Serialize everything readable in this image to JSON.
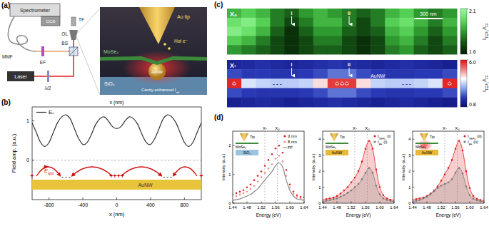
{
  "diagram": {
    "panel": "(a)",
    "setup_labels": [
      "Spectrometer",
      "CCD",
      "MMF",
      "EF",
      "BS",
      "λ/2",
      "Laser",
      "TF",
      "OL"
    ],
    "inset_labels": [
      "Au tip",
      "Hot e⁻",
      "MoSe₂",
      "AuNW",
      "SiO₂",
      [
        {
          "t": "Cavity-enhanced I"
        },
        {
          "t": "ref",
          "sub": true
        }
      ]
    ]
  },
  "chart_data": [
    {
      "type": "line",
      "panel": "(b)",
      "x_label_top": "x (nm)",
      "x_label": "x (nm)",
      "y_label": "Field amp. (a.u.)",
      "x": [
        -1000,
        -950,
        -900,
        -850,
        -800,
        -750,
        -700,
        -650,
        -600,
        -550,
        -500,
        -450,
        -400,
        -350,
        -300,
        -250,
        -200,
        -150,
        -100,
        -50,
        0,
        50,
        100,
        150,
        200,
        250,
        300,
        350,
        400,
        450,
        500,
        550,
        600,
        650,
        700,
        750,
        800,
        850,
        900,
        950,
        1000
      ],
      "series": [
        {
          "name": "Eₓ",
          "color": "#333333",
          "values": [
            0.95,
            0.7,
            0.45,
            0.35,
            0.45,
            0.7,
            0.95,
            1.1,
            1.15,
            1.05,
            0.8,
            0.55,
            0.4,
            0.45,
            0.65,
            0.9,
            1.05,
            1.1,
            1.0,
            0.85,
            0.8,
            0.85,
            1.0,
            1.1,
            1.05,
            0.9,
            0.65,
            0.45,
            0.4,
            0.55,
            0.8,
            1.05,
            1.15,
            1.1,
            0.95,
            0.7,
            0.45,
            0.35,
            0.45,
            0.7,
            0.95
          ]
        }
      ],
      "xlim": [
        -1000,
        1000
      ],
      "ylim": [
        -1.0,
        1.35
      ],
      "xticks": [
        -800,
        -400,
        0,
        400,
        800
      ],
      "yticks": [
        0,
        1
      ],
      "grid": false,
      "legend": "upper left",
      "wire_label": "AuNW",
      "field_label": [
        {
          "t": "E"
        },
        {
          "t": "spp",
          "sub": true
        }
      ],
      "annotations": [
        {
          "text": "+",
          "x": -1000
        },
        {
          "text": "- - -",
          "x": -600
        },
        {
          "text": "++++",
          "x": 0
        },
        {
          "text": "- - -",
          "x": 600
        },
        {
          "text": "+",
          "x": 1000
        }
      ]
    },
    {
      "type": "heatmap",
      "panel": "(c)",
      "title": "X₀",
      "color": "greens",
      "cells": [
        [
          1.9,
          1.95,
          1.9,
          1.8,
          1.75,
          1.85,
          1.9,
          1.85,
          1.8,
          1.75,
          1.8,
          1.9,
          1.95,
          1.85,
          1.8,
          1.85
        ],
        [
          2.0,
          2.05,
          1.95,
          1.8,
          1.7,
          1.8,
          1.9,
          1.9,
          1.8,
          1.7,
          1.8,
          1.95,
          2.0,
          1.9,
          1.8,
          1.9
        ],
        [
          2.05,
          2.0,
          1.9,
          1.75,
          1.65,
          1.75,
          1.85,
          1.85,
          1.75,
          1.7,
          1.75,
          1.9,
          1.95,
          1.85,
          1.75,
          1.85
        ],
        [
          1.95,
          1.9,
          1.8,
          1.7,
          1.65,
          1.7,
          1.8,
          1.8,
          1.7,
          1.65,
          1.7,
          1.85,
          1.9,
          1.8,
          1.7,
          1.8
        ],
        [
          1.85,
          1.8,
          1.75,
          1.7,
          1.65,
          1.7,
          1.75,
          1.75,
          1.7,
          1.65,
          1.7,
          1.8,
          1.85,
          1.75,
          1.7,
          1.75
        ]
      ],
      "zlim": [
        1.6,
        2.1
      ],
      "zticks": [
        1.6,
        2.1
      ],
      "colorbar_label": [
        {
          "t": "I"
        },
        {
          "t": "TEPL",
          "sub": true
        },
        {
          "t": "/I"
        },
        {
          "t": "FF",
          "sub": true
        }
      ],
      "scale_bar": "300 nm",
      "annotations": [
        {
          "text": "i",
          "col": 4
        },
        {
          "text": "ii",
          "col": 8
        }
      ]
    },
    {
      "type": "heatmap",
      "title": "X-",
      "color": "bwr",
      "cells": [
        [
          1.4,
          1.5,
          1.6,
          1.5,
          1.4,
          1.5,
          1.6,
          1.7,
          1.6,
          1.5,
          1.4,
          1.5,
          1.6,
          1.5,
          1.4,
          1.3
        ],
        [
          2.0,
          1.8,
          1.8,
          1.7,
          1.7,
          1.8,
          2.0,
          2.4,
          2.4,
          2.0,
          1.8,
          1.7,
          1.7,
          1.8,
          1.8,
          2.0
        ],
        [
          5.8,
          3.6,
          3.4,
          3.3,
          3.3,
          3.4,
          4.2,
          5.6,
          5.6,
          4.2,
          3.4,
          3.3,
          3.3,
          3.4,
          3.6,
          5.8
        ],
        [
          2.0,
          1.8,
          1.7,
          1.7,
          1.7,
          1.8,
          2.0,
          2.4,
          2.4,
          2.0,
          1.8,
          1.7,
          1.7,
          1.8,
          1.8,
          2.0
        ],
        [
          1.3,
          1.4,
          1.5,
          1.4,
          1.3,
          1.4,
          1.5,
          1.6,
          1.5,
          1.4,
          1.3,
          1.4,
          1.5,
          1.4,
          1.3,
          1.2
        ]
      ],
      "zlim": [
        0.8,
        6.0
      ],
      "zticks": [
        0.8,
        {
          "value": 6,
          "label": "6.0"
        }
      ],
      "colorbar_label": [
        {
          "t": "I"
        },
        {
          "t": "TEPL",
          "sub": true
        },
        {
          "t": "/I"
        },
        {
          "t": "FF",
          "sub": true
        }
      ],
      "annotations": [
        {
          "text": "i",
          "col": 4
        },
        {
          "text": "ii",
          "col": 8
        }
      ],
      "charges": [
        {
          "text": "+",
          "col": 0
        },
        {
          "text": "- - -",
          "col": 3
        },
        {
          "text": "+ + +",
          "col": 7.5
        },
        {
          "text": "- - -",
          "col": 12
        },
        {
          "text": "+",
          "col": 15
        }
      ],
      "wire_label": "AuNW"
    },
    {
      "type": "line",
      "panel": "(d)",
      "x_label": "Energy (eV)",
      "y_label": "Intensity (a.u.)",
      "x": [
        1.44,
        1.45,
        1.46,
        1.47,
        1.48,
        1.49,
        1.5,
        1.51,
        1.52,
        1.53,
        1.54,
        1.55,
        1.56,
        1.57,
        1.58,
        1.59,
        1.6,
        1.61,
        1.62,
        1.63,
        1.64
      ],
      "series": [
        {
          "name": "3 nm",
          "type": "scatter",
          "marker": "circle",
          "color": "#e02020",
          "values": [
            0.3,
            0.35,
            0.4,
            0.45,
            0.55,
            0.65,
            0.8,
            0.95,
            1.1,
            1.3,
            1.5,
            1.7,
            1.9,
            2.0,
            1.75,
            1.15,
            0.65,
            0.4,
            0.28,
            0.22,
            0.2
          ]
        },
        {
          "name": "8 nm",
          "type": "scatter",
          "marker": "circle",
          "color": "#f09090",
          "values": [
            0.2,
            0.25,
            0.3,
            0.35,
            0.4,
            0.5,
            0.6,
            0.75,
            0.9,
            1.05,
            1.2,
            1.35,
            1.55,
            1.65,
            1.45,
            0.95,
            0.55,
            0.32,
            0.22,
            0.17,
            0.15
          ]
        },
        {
          "name": "FF",
          "type": "line",
          "color": "#808080",
          "values": [
            0.1,
            0.12,
            0.15,
            0.2,
            0.25,
            0.3,
            0.4,
            0.5,
            0.65,
            0.8,
            0.95,
            1.1,
            1.3,
            1.4,
            1.25,
            0.8,
            0.45,
            0.25,
            0.15,
            0.12,
            0.1
          ]
        }
      ],
      "xlim": [
        1.44,
        1.64
      ],
      "ylim": [
        0,
        2.5
      ],
      "xticks": [
        1.44,
        1.48,
        1.52,
        1.56,
        {
          "value": 1.6,
          "label": "1.60"
        },
        1.64
      ],
      "yticks": [
        0,
        1,
        2
      ],
      "legend": "upper right",
      "markers": [
        {
          "label": "X-",
          "value": 1.53
        },
        {
          "label": "X₀",
          "value": 1.565
        }
      ],
      "inset_labels": [
        "Tip",
        "MoSe₂",
        "SiO₂"
      ]
    },
    {
      "type": "line",
      "x_label": "Energy (eV)",
      "y_label": "Intensity (a.u.)",
      "x": [
        1.44,
        1.45,
        1.46,
        1.47,
        1.48,
        1.49,
        1.5,
        1.51,
        1.52,
        1.53,
        1.54,
        1.55,
        1.56,
        1.57,
        1.58,
        1.59,
        1.6,
        1.61,
        1.62,
        1.63,
        1.64
      ],
      "series": [
        {
          "name": [
            {
              "t": "I"
            },
            {
              "t": "TEPL",
              "sub": true
            },
            {
              "t": " (i)"
            }
          ],
          "type": "area",
          "marker": "circle",
          "color": "#e02020",
          "values": [
            0.2,
            0.25,
            0.3,
            0.35,
            0.45,
            0.6,
            0.8,
            1.0,
            1.3,
            1.6,
            2.0,
            2.6,
            3.4,
            3.9,
            3.4,
            2.1,
            1.0,
            0.5,
            0.3,
            0.22,
            0.18
          ]
        },
        {
          "name": [
            {
              "t": "I"
            },
            {
              "t": "FF",
              "sub": true
            },
            {
              "t": " (i)"
            }
          ],
          "type": "area",
          "marker": "circle",
          "color": "#7a7a7a",
          "values": [
            0.1,
            0.15,
            0.2,
            0.25,
            0.3,
            0.4,
            0.5,
            0.65,
            0.8,
            1.0,
            1.2,
            1.5,
            1.9,
            2.2,
            1.9,
            1.1,
            0.55,
            0.3,
            0.2,
            0.15,
            0.1
          ]
        }
      ],
      "xlim": [
        1.44,
        1.64
      ],
      "ylim": [
        0,
        4.5
      ],
      "xticks": [
        1.44,
        1.48,
        1.52,
        1.56,
        {
          "value": 1.6,
          "label": "1.60"
        },
        1.64
      ],
      "yticks": [
        0,
        1,
        2,
        3,
        4
      ],
      "legend": "upper right",
      "markers": [
        {
          "label": "X-",
          "value": 1.53
        },
        {
          "label": "X₀",
          "value": 1.565
        }
      ],
      "inset_labels": [
        "Tip",
        "MoSe₂",
        "AuNW"
      ]
    },
    {
      "type": "line",
      "x_label": "Energy (eV)",
      "y_label": "Intensity (a.u.)",
      "x": [
        1.44,
        1.45,
        1.46,
        1.47,
        1.48,
        1.49,
        1.5,
        1.51,
        1.52,
        1.53,
        1.54,
        1.55,
        1.56,
        1.57,
        1.58,
        1.59,
        1.6,
        1.61,
        1.62,
        1.63,
        1.64
      ],
      "series": [
        {
          "name": [
            {
              "t": "I"
            },
            {
              "t": "TEPL",
              "sub": true
            },
            {
              "t": " (ii)"
            }
          ],
          "type": "area",
          "marker": "circle",
          "color": "#e02020",
          "values": [
            0.2,
            0.25,
            0.3,
            0.35,
            0.45,
            0.6,
            0.8,
            1.05,
            1.4,
            1.8,
            2.2,
            2.7,
            3.4,
            3.9,
            3.3,
            2.0,
            0.95,
            0.45,
            0.28,
            0.2,
            0.15
          ]
        },
        {
          "name": [
            {
              "t": "I"
            },
            {
              "t": "FF",
              "sub": true
            },
            {
              "t": " (ii)"
            }
          ],
          "type": "area",
          "marker": "circle",
          "color": "#7a7a7a",
          "values": [
            0.1,
            0.15,
            0.2,
            0.3,
            0.4,
            0.55,
            0.75,
            0.95,
            1.1,
            1.2,
            1.3,
            1.5,
            1.9,
            2.2,
            1.85,
            1.05,
            0.5,
            0.28,
            0.18,
            0.12,
            0.1
          ]
        }
      ],
      "xlim": [
        1.44,
        1.64
      ],
      "ylim": [
        0,
        4.5
      ],
      "xticks": [
        1.44,
        1.48,
        1.52,
        1.56,
        {
          "value": 1.6,
          "label": "1.60"
        },
        1.64
      ],
      "yticks": [
        0,
        1,
        2,
        3,
        4
      ],
      "legend": "upper right",
      "markers": [
        {
          "label": "X-",
          "value": 1.53
        },
        {
          "label": "X₀",
          "value": 1.565
        }
      ],
      "inset_labels": [
        "Tip",
        "MoSe₂",
        "AuNW"
      ]
    }
  ]
}
